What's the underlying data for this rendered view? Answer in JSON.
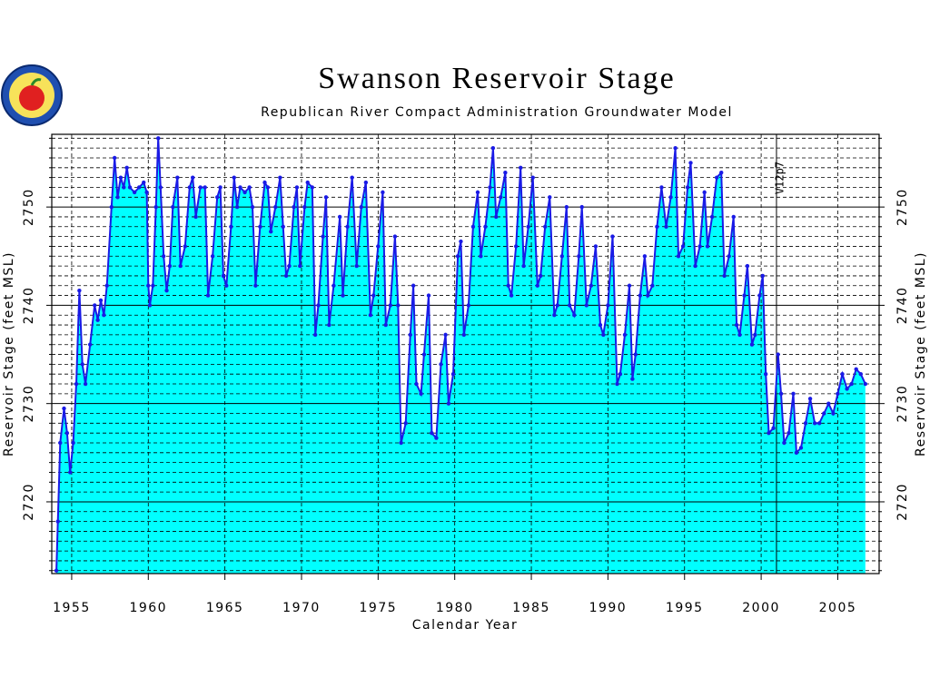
{
  "chart_data": {
    "type": "area",
    "title": "Swanson Reservoir Stage",
    "subtitle": "Republican River Compact Administration Groundwater Model",
    "xlabel": "Calendar Year",
    "ylabel": "Reservoir Stage (feet MSL)",
    "color": "#1a1ae6",
    "fill_color": "#00ffff",
    "xlim": [
      1953.7,
      2007.7
    ],
    "ylim": [
      2712.7,
      2757.4
    ],
    "xticks": [
      1955,
      1960,
      1965,
      1970,
      1975,
      1980,
      1985,
      1990,
      1995,
      2000,
      2005
    ],
    "yticks": [
      2720,
      2730,
      2740,
      2750
    ],
    "minor_yticks": [
      2713,
      2714,
      2715,
      2716,
      2717,
      2718,
      2719,
      2721,
      2722,
      2723,
      2724,
      2725,
      2726,
      2727,
      2728,
      2729,
      2731,
      2732,
      2733,
      2734,
      2735,
      2736,
      2737,
      2738,
      2739,
      2741,
      2742,
      2743,
      2744,
      2745,
      2746,
      2747,
      2748,
      2749,
      2751,
      2752,
      2753,
      2754,
      2755,
      2756,
      2757
    ],
    "grid": true,
    "annotation": {
      "text": "V12p7",
      "x": 2001
    },
    "x": [
      1954.0,
      1954.1,
      1954.25,
      1954.5,
      1954.7,
      1954.9,
      1955.1,
      1955.3,
      1955.5,
      1955.7,
      1955.9,
      1956.2,
      1956.5,
      1956.7,
      1956.9,
      1957.1,
      1957.3,
      1957.6,
      1957.8,
      1958.0,
      1958.2,
      1958.4,
      1958.6,
      1958.8,
      1959.1,
      1959.4,
      1959.7,
      1959.9,
      1960.0,
      1960.1,
      1960.3,
      1960.5,
      1960.65,
      1960.8,
      1961.0,
      1961.2,
      1961.4,
      1961.6,
      1961.9,
      1962.1,
      1962.4,
      1962.7,
      1962.9,
      1963.1,
      1963.4,
      1963.7,
      1963.9,
      1964.2,
      1964.5,
      1964.7,
      1964.9,
      1965.1,
      1965.4,
      1965.6,
      1965.8,
      1966.0,
      1966.3,
      1966.6,
      1966.8,
      1967.0,
      1967.3,
      1967.6,
      1967.8,
      1968.0,
      1968.3,
      1968.6,
      1968.8,
      1969.0,
      1969.2,
      1969.5,
      1969.7,
      1969.9,
      1970.2,
      1970.4,
      1970.7,
      1970.9,
      1971.1,
      1971.4,
      1971.6,
      1971.8,
      1972.1,
      1972.5,
      1972.7,
      1973.0,
      1973.3,
      1973.6,
      1973.9,
      1974.2,
      1974.5,
      1974.7,
      1975.0,
      1975.3,
      1975.5,
      1975.8,
      1976.1,
      1976.3,
      1976.5,
      1976.8,
      1977.1,
      1977.3,
      1977.5,
      1977.8,
      1978.0,
      1978.3,
      1978.5,
      1978.8,
      1979.1,
      1979.4,
      1979.6,
      1979.9,
      1980.2,
      1980.4,
      1980.6,
      1980.9,
      1981.2,
      1981.5,
      1981.7,
      1982.0,
      1982.3,
      1982.5,
      1982.7,
      1983.0,
      1983.3,
      1983.5,
      1983.7,
      1984.0,
      1984.3,
      1984.5,
      1984.8,
      1985.1,
      1985.4,
      1985.6,
      1985.9,
      1986.2,
      1986.5,
      1986.7,
      1987.0,
      1987.3,
      1987.5,
      1987.8,
      1988.1,
      1988.3,
      1988.6,
      1988.9,
      1989.2,
      1989.5,
      1989.7,
      1990.0,
      1990.3,
      1990.6,
      1990.8,
      1991.1,
      1991.4,
      1991.6,
      1991.8,
      1992.1,
      1992.4,
      1992.6,
      1992.9,
      1993.2,
      1993.5,
      1993.8,
      1994.1,
      1994.4,
      1994.6,
      1994.9,
      1995.2,
      1995.4,
      1995.7,
      1996.0,
      1996.3,
      1996.5,
      1996.8,
      1997.1,
      1997.4,
      1997.6,
      1997.9,
      1998.2,
      1998.4,
      1998.6,
      1998.9,
      1999.1,
      1999.4,
      1999.6,
      1999.9,
      2000.1,
      2000.3,
      2000.5,
      2000.8,
      2001.1,
      2001.3,
      2001.5,
      2001.8,
      2002.1,
      2002.3,
      2002.6,
      2002.9,
      2003.2,
      2003.5,
      2003.8,
      2004.1,
      2004.4,
      2004.7,
      2005.0,
      2005.3,
      2005.6,
      2005.9,
      2006.2,
      2006.5,
      2006.8
    ],
    "values": [
      2713,
      2718,
      2726,
      2729.5,
      2727,
      2723,
      2726,
      2732,
      2741.5,
      2734,
      2732,
      2736,
      2740,
      2738.5,
      2740.5,
      2739,
      2742,
      2750,
      2755,
      2751,
      2753,
      2752,
      2754,
      2752,
      2751.5,
      2752,
      2752.5,
      2751.5,
      2742,
      2740,
      2742,
      2750,
      2757,
      2752,
      2745,
      2741.5,
      2744,
      2750,
      2753,
      2744,
      2746,
      2752,
      2753,
      2749,
      2752,
      2752,
      2741,
      2745,
      2751,
      2752,
      2743,
      2742,
      2748,
      2753,
      2750,
      2752,
      2751.5,
      2752,
      2750,
      2742,
      2748,
      2752.5,
      2752,
      2747.5,
      2750,
      2753,
      2748,
      2743,
      2744,
      2750,
      2752,
      2744,
      2750,
      2752.5,
      2752,
      2737,
      2740,
      2747,
      2751,
      2738,
      2742,
      2749,
      2741,
      2748,
      2753,
      2744,
      2750,
      2752.5,
      2739,
      2741,
      2746,
      2751.5,
      2738,
      2740,
      2747,
      2740,
      2726,
      2728,
      2737,
      2742,
      2732,
      2731,
      2735,
      2741,
      2727,
      2726.5,
      2734,
      2737,
      2730,
      2733,
      2745,
      2746.5,
      2737,
      2740,
      2748,
      2751.5,
      2745,
      2748,
      2752,
      2756,
      2749,
      2751,
      2753.5,
      2742,
      2741,
      2746,
      2754,
      2744,
      2748,
      2753,
      2742,
      2743,
      2748,
      2751,
      2739,
      2740,
      2745,
      2750,
      2740,
      2739,
      2745,
      2750,
      2740,
      2742,
      2746,
      2738,
      2737,
      2740,
      2747,
      2732,
      2733,
      2737,
      2742,
      2732.5,
      2735,
      2741,
      2745,
      2741,
      2742,
      2748,
      2752,
      2748,
      2751,
      2756,
      2745,
      2746,
      2752,
      2754.5,
      2744,
      2746,
      2751.5,
      2746,
      2749,
      2753,
      2753.5,
      2743,
      2745,
      2749,
      2738,
      2737,
      2741,
      2744,
      2736,
      2737,
      2741,
      2743,
      2733,
      2727,
      2727.5,
      2735,
      2731,
      2726,
      2727,
      2731,
      2725,
      2725.5,
      2728,
      2730.5,
      2728,
      2728,
      2729,
      2730,
      2729,
      2731,
      2733,
      2731.5,
      2732,
      2733.5,
      2733,
      2732
    ]
  }
}
